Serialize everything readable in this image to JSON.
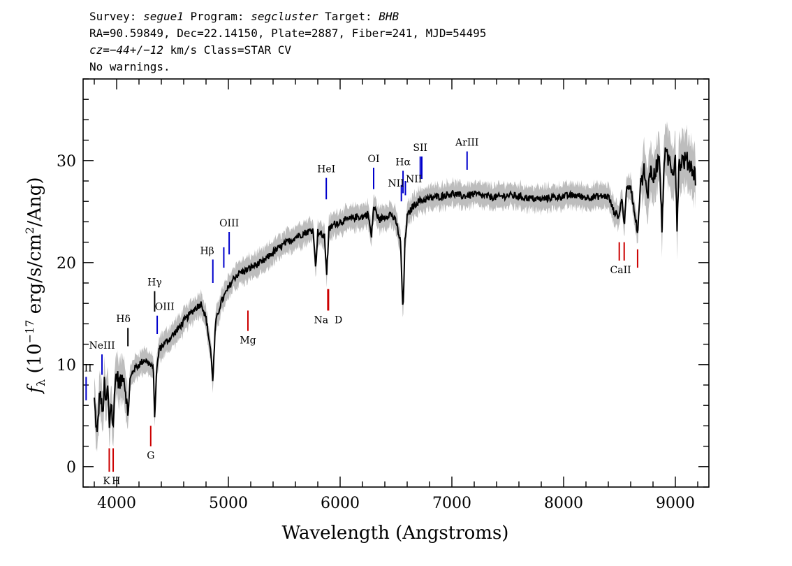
{
  "header": {
    "survey_label": "Survey: ",
    "survey": "segue1",
    "program_label": " Program: ",
    "program": "segcluster",
    "target_label": " Target: ",
    "target": "BHB",
    "line2": "RA=90.59849, Dec=22.14150, Plate=2887, Fiber=241, MJD=54495",
    "cz_label": "cz",
    "cz_eq": "=",
    "cz_value": "−44+/−12",
    "cz_rest": " km/s Class=STAR CV",
    "warnings": "No warnings."
  },
  "chart_data": {
    "type": "line",
    "xlabel": "Wavelength (Angstroms)",
    "ylabel_parts": {
      "f": "f",
      "lambda": "λ",
      "open": " (10",
      "exp1": "−17",
      "mid": " erg/s/cm",
      "exp2": "2",
      "close": "/Ang)"
    },
    "xlim": [
      3700,
      9300
    ],
    "ylim": [
      -2,
      38
    ],
    "x_ticks": [
      4000,
      5000,
      6000,
      7000,
      8000,
      9000
    ],
    "y_ticks": [
      0,
      10,
      20,
      30
    ],
    "series": [
      {
        "style": "flux",
        "color": "#000000",
        "error_color": "#bdbdbd",
        "points": [
          [
            3800,
            6.5
          ],
          [
            3825,
            3.0
          ],
          [
            3850,
            7.5
          ],
          [
            3875,
            5.0
          ],
          [
            3890,
            8.0
          ],
          [
            3905,
            6.0
          ],
          [
            3920,
            7.8
          ],
          [
            3935,
            4.0
          ],
          [
            3950,
            6.5
          ],
          [
            3970,
            3.5
          ],
          [
            3985,
            8.5
          ],
          [
            4000,
            9.0
          ],
          [
            4030,
            8.0
          ],
          [
            4060,
            9.2
          ],
          [
            4085,
            7.0
          ],
          [
            4101,
            4.8
          ],
          [
            4120,
            8.5
          ],
          [
            4150,
            9.5
          ],
          [
            4200,
            10.0
          ],
          [
            4250,
            10.5
          ],
          [
            4300,
            10.0
          ],
          [
            4330,
            9.5
          ],
          [
            4340,
            4.5
          ],
          [
            4355,
            9.0
          ],
          [
            4380,
            11.5
          ],
          [
            4420,
            12.0
          ],
          [
            4470,
            12.5
          ],
          [
            4550,
            13.5
          ],
          [
            4620,
            14.5
          ],
          [
            4700,
            15.5
          ],
          [
            4760,
            16.0
          ],
          [
            4800,
            14.5
          ],
          [
            4840,
            11.5
          ],
          [
            4861,
            8.5
          ],
          [
            4885,
            14.0
          ],
          [
            4930,
            16.0
          ],
          [
            5000,
            17.5
          ],
          [
            5050,
            18.5
          ],
          [
            5100,
            19.0
          ],
          [
            5150,
            19.2
          ],
          [
            5200,
            19.5
          ],
          [
            5250,
            19.8
          ],
          [
            5300,
            20.0
          ],
          [
            5400,
            21.0
          ],
          [
            5500,
            21.8
          ],
          [
            5600,
            22.5
          ],
          [
            5700,
            23.0
          ],
          [
            5760,
            23.2
          ],
          [
            5780,
            19.5
          ],
          [
            5800,
            23.0
          ],
          [
            5860,
            22.5
          ],
          [
            5880,
            19.0
          ],
          [
            5900,
            23.2
          ],
          [
            5950,
            23.8
          ],
          [
            6000,
            24.0
          ],
          [
            6100,
            24.3
          ],
          [
            6150,
            24.5
          ],
          [
            6200,
            24.5
          ],
          [
            6250,
            24.8
          ],
          [
            6280,
            22.5
          ],
          [
            6300,
            25.5
          ],
          [
            6350,
            24.2
          ],
          [
            6400,
            24.5
          ],
          [
            6450,
            24.8
          ],
          [
            6500,
            24.0
          ],
          [
            6540,
            22.0
          ],
          [
            6563,
            15.0
          ],
          [
            6580,
            22.0
          ],
          [
            6600,
            24.5
          ],
          [
            6650,
            25.5
          ],
          [
            6700,
            26.0
          ],
          [
            6800,
            26.3
          ],
          [
            6900,
            26.5
          ],
          [
            7000,
            26.8
          ],
          [
            7100,
            26.5
          ],
          [
            7200,
            26.7
          ],
          [
            7300,
            26.5
          ],
          [
            7400,
            26.4
          ],
          [
            7500,
            26.6
          ],
          [
            7600,
            26.5
          ],
          [
            7700,
            26.3
          ],
          [
            7800,
            26.2
          ],
          [
            7900,
            26.4
          ],
          [
            8000,
            26.5
          ],
          [
            8100,
            26.6
          ],
          [
            8200,
            26.4
          ],
          [
            8300,
            26.5
          ],
          [
            8400,
            26.5
          ],
          [
            8450,
            25.0
          ],
          [
            8498,
            24.5
          ],
          [
            8520,
            26.5
          ],
          [
            8542,
            23.5
          ],
          [
            8560,
            27.0
          ],
          [
            8600,
            27.5
          ],
          [
            8620,
            26.0
          ],
          [
            8662,
            23.0
          ],
          [
            8690,
            28.0
          ],
          [
            8720,
            29.0
          ],
          [
            8750,
            26.0
          ],
          [
            8770,
            29.5
          ],
          [
            8800,
            28.0
          ],
          [
            8830,
            29.5
          ],
          [
            8860,
            30.0
          ],
          [
            8880,
            23.0
          ],
          [
            8900,
            30.5
          ],
          [
            8950,
            30.0
          ],
          [
            8980,
            29.0
          ],
          [
            9000,
            30.5
          ],
          [
            9015,
            23.5
          ],
          [
            9030,
            29.5
          ],
          [
            9060,
            30.0
          ],
          [
            9100,
            30.0
          ],
          [
            9140,
            29.5
          ],
          [
            9180,
            28.5
          ]
        ]
      }
    ],
    "lines": [
      {
        "label": "II",
        "x": 3727,
        "color": "blue",
        "ylo": 6.5,
        "yhi": 8.8
      },
      {
        "label": "NeIII",
        "x": 3869,
        "color": "blue",
        "ylo": 9.0,
        "yhi": 11.0
      },
      {
        "label": "Hδ",
        "x": 4101,
        "color": "black",
        "ylo": 11.8,
        "yhi": 13.6
      },
      {
        "label": "Hγ",
        "x": 4340,
        "color": "black",
        "ylo": 15.2,
        "yhi": 17.2
      },
      {
        "label": "OIII",
        "x": 4363,
        "color": "blue",
        "ylo": 13.0,
        "yhi": 14.8
      },
      {
        "label": "Hβ",
        "x": 4861,
        "color": "blue",
        "ylo": 18.0,
        "yhi": 20.3
      },
      {
        "label": "",
        "x": 4959,
        "color": "blue",
        "ylo": 19.5,
        "yhi": 21.5
      },
      {
        "label": "OIII",
        "x": 5007,
        "color": "blue",
        "ylo": 20.8,
        "yhi": 23.0
      },
      {
        "label": "HeI",
        "x": 5876,
        "color": "blue",
        "ylo": 26.2,
        "yhi": 28.3
      },
      {
        "label": "OI",
        "x": 6300,
        "color": "blue",
        "ylo": 27.2,
        "yhi": 29.3
      },
      {
        "label": "NII",
        "x": 6548,
        "color": "blue",
        "ylo": 26.0,
        "yhi": 27.6
      },
      {
        "label": "Hα",
        "x": 6563,
        "color": "blue",
        "ylo": 26.8,
        "yhi": 29.0
      },
      {
        "label": "NII",
        "x": 6584,
        "color": "blue",
        "ylo": 26.6,
        "yhi": 28.0
      },
      {
        "label": "SII",
        "x": 6717,
        "color": "blue",
        "ylo": 28.2,
        "yhi": 30.4
      },
      {
        "label": "",
        "x": 6731,
        "color": "blue",
        "ylo": 28.2,
        "yhi": 30.4
      },
      {
        "label": "ArIII",
        "x": 7136,
        "color": "blue",
        "ylo": 29.1,
        "yhi": 30.9
      },
      {
        "label": "K",
        "x": 3934,
        "color": "red",
        "ylo": -0.5,
        "yhi": 1.8
      },
      {
        "label": "H",
        "x": 3969,
        "color": "red",
        "ylo": -0.5,
        "yhi": 1.8
      },
      {
        "label": "G",
        "x": 4305,
        "color": "red",
        "ylo": 2.0,
        "yhi": 4.0
      },
      {
        "label": "Mg",
        "x": 5175,
        "color": "red",
        "ylo": 13.3,
        "yhi": 15.3
      },
      {
        "label": "Na",
        "x": 5890,
        "color": "red",
        "ylo": 15.3,
        "yhi": 17.4
      },
      {
        "label": "D",
        "x": 5896,
        "color": "red",
        "ylo": 15.3,
        "yhi": 17.4
      },
      {
        "label": "CaII",
        "x": 8498,
        "color": "red",
        "ylo": 20.2,
        "yhi": 22.0
      },
      {
        "label": "",
        "x": 8542,
        "color": "red",
        "ylo": 20.2,
        "yhi": 22.0
      },
      {
        "label": "",
        "x": 8662,
        "color": "red",
        "ylo": 19.5,
        "yhi": 21.3
      }
    ]
  }
}
